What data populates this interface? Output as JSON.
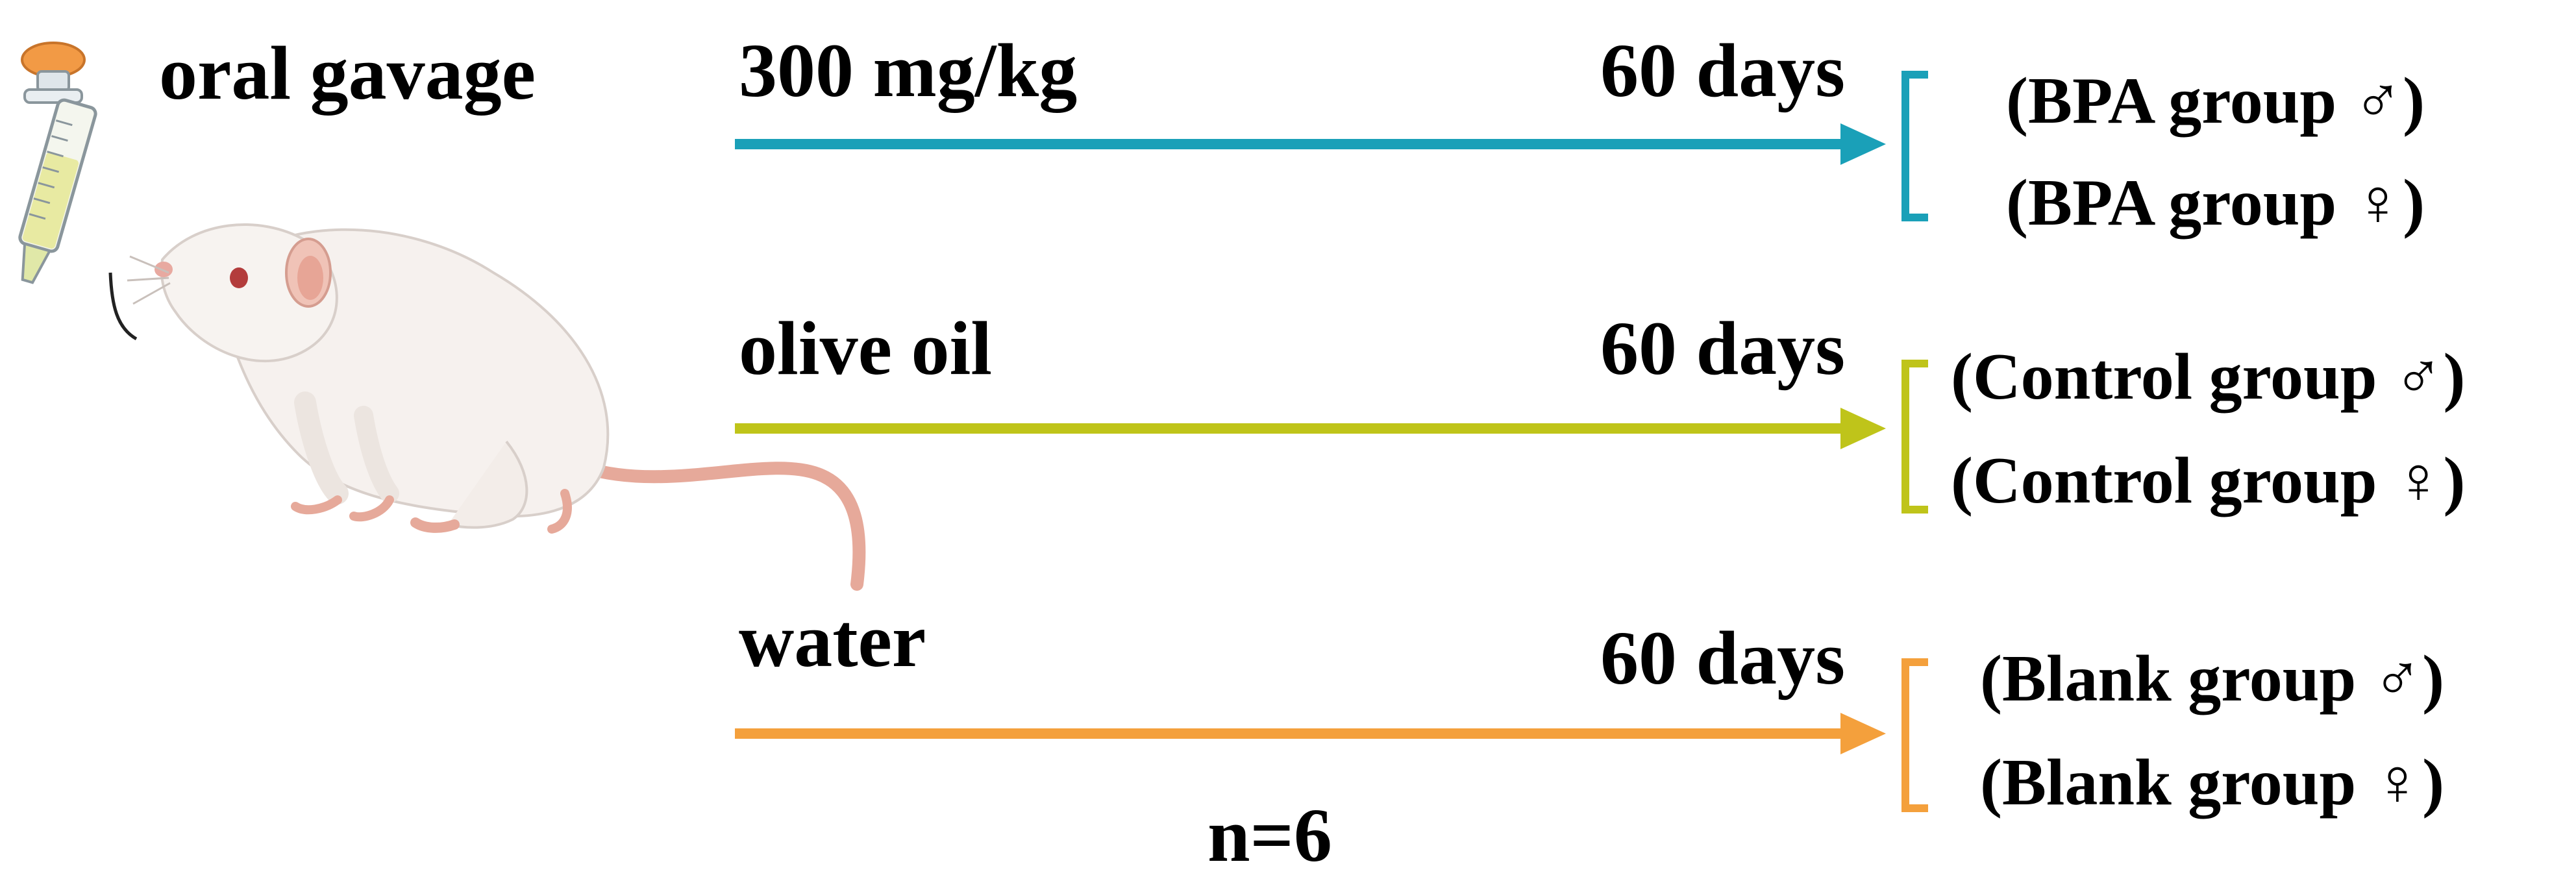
{
  "administration": "oral gavage",
  "treatments": [
    {
      "dose_label": "300 mg/kg",
      "duration_label": "60 days",
      "color": "#1aa0b8",
      "groups": [
        "(BPA group ♂)",
        "(BPA group ♀)"
      ]
    },
    {
      "dose_label": "olive oil",
      "duration_label": "60 days",
      "color": "#bfc41a",
      "groups": [
        "(Control group ♂)",
        "(Control group ♀)"
      ]
    },
    {
      "dose_label": "water",
      "duration_label": "60 days",
      "color": "#f4a03c",
      "groups": [
        "(Blank group ♂)",
        "(Blank group ♀)"
      ]
    }
  ],
  "sample_size": "n=6"
}
